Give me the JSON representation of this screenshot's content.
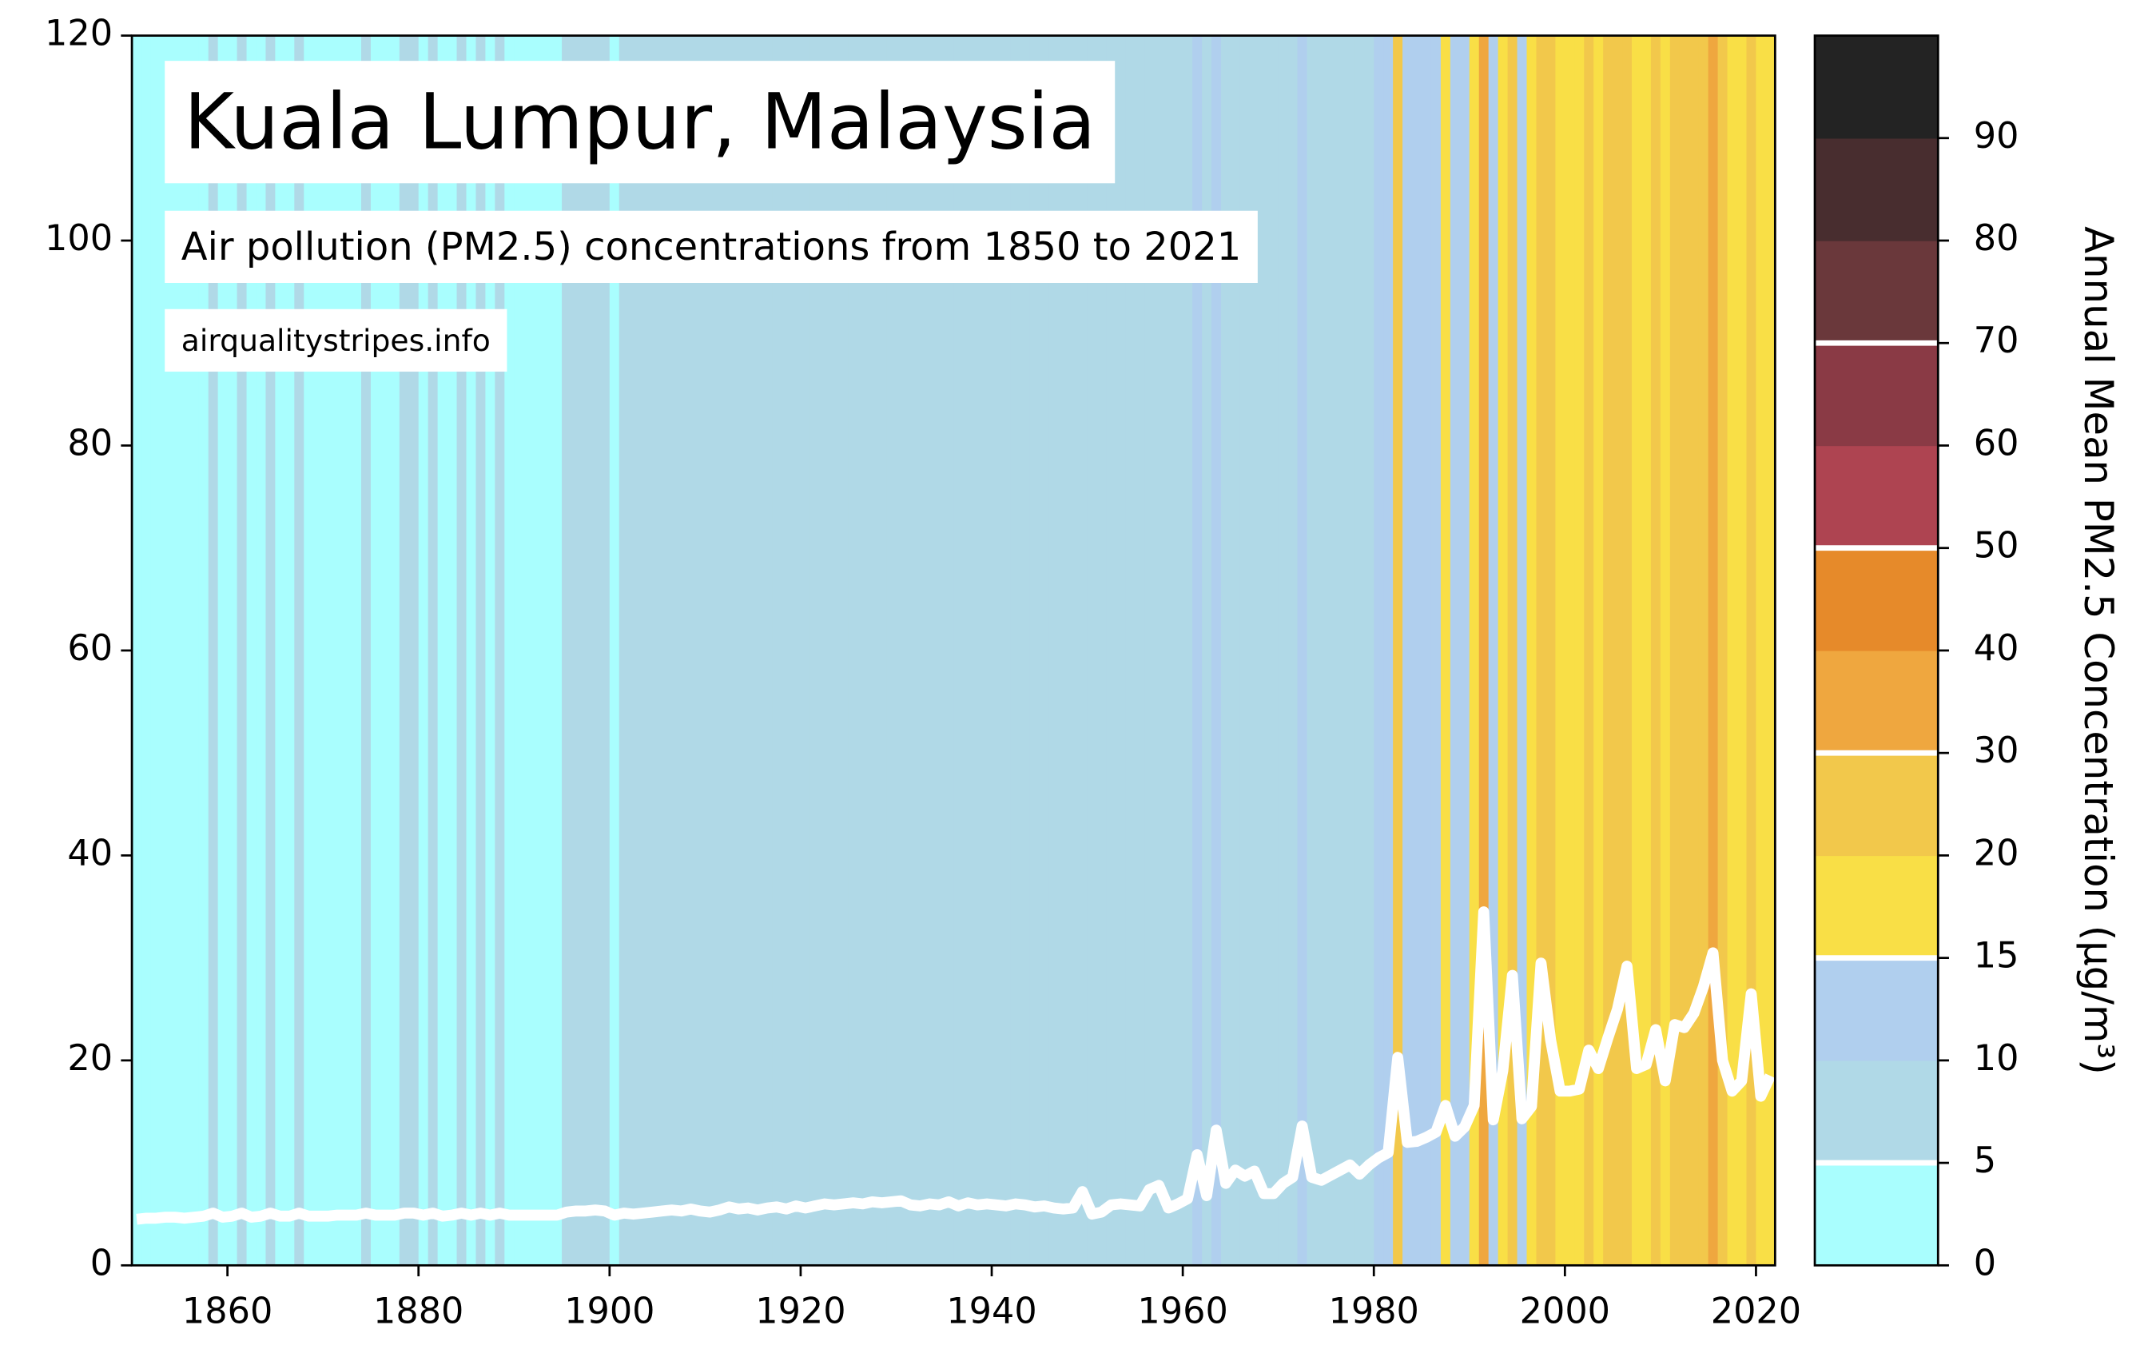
{
  "chart_data": {
    "type": "stripes-line",
    "title": "Kuala Lumpur, Malaysia",
    "subtitle": "Air pollution (PM2.5) concentrations from 1850 to 2021",
    "source": "airqualitystripes.info",
    "line_color": "#ffffff",
    "x": [
      1850,
      1851,
      1852,
      1853,
      1854,
      1855,
      1856,
      1857,
      1858,
      1859,
      1860,
      1861,
      1862,
      1863,
      1864,
      1865,
      1866,
      1867,
      1868,
      1869,
      1870,
      1871,
      1872,
      1873,
      1874,
      1875,
      1876,
      1877,
      1878,
      1879,
      1880,
      1881,
      1882,
      1883,
      1884,
      1885,
      1886,
      1887,
      1888,
      1889,
      1890,
      1891,
      1892,
      1893,
      1894,
      1895,
      1896,
      1897,
      1898,
      1899,
      1900,
      1901,
      1902,
      1903,
      1904,
      1905,
      1906,
      1907,
      1908,
      1909,
      1910,
      1911,
      1912,
      1913,
      1914,
      1915,
      1916,
      1917,
      1918,
      1919,
      1920,
      1921,
      1922,
      1923,
      1924,
      1925,
      1926,
      1927,
      1928,
      1929,
      1930,
      1931,
      1932,
      1933,
      1934,
      1935,
      1936,
      1937,
      1938,
      1939,
      1940,
      1941,
      1942,
      1943,
      1944,
      1945,
      1946,
      1947,
      1948,
      1949,
      1950,
      1951,
      1952,
      1953,
      1954,
      1955,
      1956,
      1957,
      1958,
      1959,
      1960,
      1961,
      1962,
      1963,
      1964,
      1965,
      1966,
      1967,
      1968,
      1969,
      1970,
      1971,
      1972,
      1973,
      1974,
      1975,
      1976,
      1977,
      1978,
      1979,
      1980,
      1981,
      1982,
      1983,
      1984,
      1985,
      1986,
      1987,
      1988,
      1989,
      1990,
      1991,
      1992,
      1993,
      1994,
      1995,
      1996,
      1997,
      1998,
      1999,
      2000,
      2001,
      2002,
      2003,
      2004,
      2005,
      2006,
      2007,
      2008,
      2009,
      2010,
      2011,
      2012,
      2013,
      2014,
      2015,
      2016,
      2017,
      2018,
      2019,
      2020,
      2021
    ],
    "values": [
      4.5,
      4.6,
      4.6,
      4.7,
      4.7,
      4.6,
      4.7,
      4.8,
      5.1,
      4.7,
      4.8,
      5.1,
      4.7,
      4.8,
      5.1,
      4.8,
      4.8,
      5.1,
      4.8,
      4.8,
      4.8,
      4.9,
      4.9,
      4.9,
      5.1,
      4.9,
      4.9,
      4.9,
      5.1,
      5.1,
      4.9,
      5.1,
      4.8,
      4.9,
      5.1,
      4.9,
      5.1,
      4.9,
      5.1,
      4.9,
      4.9,
      4.9,
      4.9,
      4.9,
      4.9,
      5.2,
      5.3,
      5.3,
      5.4,
      5.3,
      4.9,
      5.1,
      5.0,
      5.1,
      5.2,
      5.3,
      5.4,
      5.3,
      5.5,
      5.3,
      5.2,
      5.4,
      5.7,
      5.5,
      5.6,
      5.4,
      5.6,
      5.7,
      5.5,
      5.8,
      5.6,
      5.8,
      6.0,
      5.9,
      6.0,
      6.1,
      6.0,
      6.2,
      6.1,
      6.2,
      6.3,
      5.9,
      5.8,
      6.0,
      5.9,
      6.2,
      5.8,
      6.1,
      5.9,
      6.0,
      5.9,
      5.8,
      6.0,
      5.9,
      5.7,
      5.8,
      5.6,
      5.5,
      5.6,
      7.2,
      5.0,
      5.2,
      5.9,
      6.0,
      5.9,
      5.8,
      7.4,
      7.8,
      5.6,
      6.0,
      6.5,
      10.8,
      6.8,
      13.2,
      8.0,
      9.3,
      8.7,
      9.2,
      7.0,
      7.0,
      8.0,
      8.6,
      13.6,
      8.6,
      8.3,
      8.8,
      9.3,
      9.8,
      8.9,
      9.8,
      10.5,
      11.0,
      20.3,
      12.0,
      12.1,
      12.5,
      13.0,
      15.6,
      12.6,
      13.5,
      15.6,
      34.5,
      14.2,
      19.0,
      28.3,
      14.3,
      15.5,
      29.5,
      22.0,
      17.0,
      17.0,
      17.2,
      21.0,
      19.2,
      22.2,
      25.0,
      29.2,
      19.2,
      19.6,
      23.0,
      18.0,
      23.5,
      23.2,
      24.6,
      27.2,
      30.5,
      20.0,
      17.0,
      18.0,
      26.5,
      16.5,
      18.5
    ],
    "xlim": [
      1850,
      2022
    ],
    "xticks": [
      1860,
      1880,
      1900,
      1920,
      1940,
      1960,
      1980,
      2000,
      2020
    ],
    "ylim": [
      0,
      120
    ],
    "yticks": [
      0,
      20,
      40,
      60,
      80,
      100,
      120
    ],
    "colorbar": {
      "label": "Annual Mean PM2.5 Concentration (µg/m³)",
      "ticks": [
        0,
        5,
        10,
        15,
        20,
        30,
        40,
        50,
        60,
        70,
        80,
        90
      ],
      "colors": [
        "#a9fefe",
        "#b0d9e7",
        "#b0cfee",
        "#f9df46",
        "#f2c84b",
        "#efa73f",
        "#e68a2a",
        "#ae4451",
        "#8a3a45",
        "#6a383b",
        "#482d2f",
        "#232323"
      ],
      "marks": [
        5,
        15,
        30,
        50,
        70
      ]
    }
  }
}
